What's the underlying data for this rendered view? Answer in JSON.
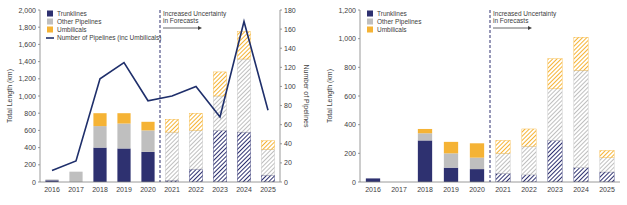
{
  "chart_data": [
    {
      "type": "bar",
      "stacked": true,
      "grid": false,
      "legend": "top-left",
      "y_label": "Total Length (km)",
      "y2_label": "Number of Pipelines",
      "annotation": {
        "text": "Increased Uncertainty in Forecasts",
        "category": "2020"
      },
      "categories": [
        "2016",
        "2017",
        "2018",
        "2019",
        "2020",
        "2021",
        "2022",
        "2023",
        "2024",
        "2025"
      ],
      "ylim": [
        0,
        2000
      ],
      "yticks": [
        0,
        200,
        400,
        600,
        800,
        {
          "value": 1000,
          "label": "1,000"
        },
        {
          "value": 1200,
          "label": "1,200"
        },
        {
          "value": 1400,
          "label": "1,400"
        },
        {
          "value": 1600,
          "label": "1,600"
        },
        {
          "value": 1800,
          "label": "1,800"
        },
        {
          "value": 2000,
          "label": "2,000"
        }
      ],
      "y2lim": [
        0,
        180
      ],
      "y2ticks": [
        0,
        20,
        40,
        60,
        80,
        100,
        120,
        140,
        160,
        180
      ],
      "series": [
        {
          "name": "Trunklines",
          "color": "#2e3170",
          "values": [
            20,
            0,
            400,
            390,
            350,
            20,
            150,
            600,
            580,
            80
          ]
        },
        {
          "name": "Other Pipelines",
          "color": "#bfbfbf",
          "values": [
            10,
            120,
            250,
            290,
            250,
            560,
            450,
            400,
            850,
            300
          ]
        },
        {
          "name": "Umbilicals",
          "color": "#f5b335",
          "values": [
            0,
            0,
            150,
            120,
            100,
            150,
            200,
            280,
            320,
            100
          ]
        },
        {
          "name": "Number of Pipelines (inc Umbilicals)",
          "type": "line",
          "axis": "y2",
          "color": "#1f2f6b",
          "values": [
            12,
            22,
            108,
            125,
            85,
            90,
            100,
            68,
            168,
            75
          ]
        }
      ]
    },
    {
      "type": "bar",
      "stacked": true,
      "grid": false,
      "legend": "top-left",
      "y_label": "Total Length (km)",
      "annotation": {
        "text": "Increased Uncertainty in Forecasts",
        "category": "2020"
      },
      "categories": [
        "2016",
        "2017",
        "2018",
        "2019",
        "2020",
        "2021",
        "2022",
        "2023",
        "2024",
        "2025"
      ],
      "ylim": [
        0,
        1200
      ],
      "yticks": [
        0,
        200,
        400,
        600,
        800,
        {
          "value": 1000,
          "label": "1,000"
        },
        {
          "value": 1200,
          "label": "1,200"
        }
      ],
      "series": [
        {
          "name": "Trunklines",
          "color": "#2e3170",
          "values": [
            25,
            0,
            290,
            100,
            90,
            60,
            50,
            290,
            100,
            70
          ]
        },
        {
          "name": "Other Pipelines",
          "color": "#bfbfbf",
          "values": [
            0,
            0,
            50,
            100,
            80,
            140,
            200,
            360,
            680,
            100
          ]
        },
        {
          "name": "Umbilicals",
          "color": "#f5b335",
          "values": [
            0,
            0,
            30,
            80,
            100,
            90,
            120,
            210,
            230,
            50
          ]
        }
      ]
    }
  ]
}
